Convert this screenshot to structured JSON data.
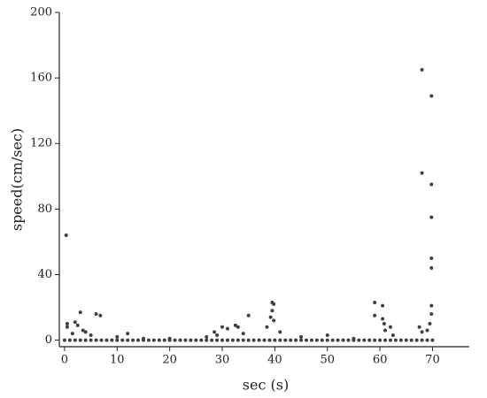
{
  "chart_data": {
    "type": "scatter",
    "x_label": "sec (s)",
    "y_label": "speed(cm/sec)",
    "color": "#404040",
    "xlim": [
      -1,
      77
    ],
    "ylim": [
      -4,
      200
    ],
    "xticks": [
      0,
      10,
      20,
      30,
      40,
      50,
      60,
      70
    ],
    "yticks": [
      0,
      40,
      80,
      120,
      160,
      200
    ],
    "x": [
      0,
      1,
      2,
      3,
      4,
      5,
      6,
      7,
      8,
      9,
      10,
      11,
      12,
      13,
      14,
      15,
      16,
      17,
      18,
      19,
      20,
      21,
      22,
      23,
      24,
      25,
      26,
      27,
      28,
      29,
      30,
      31,
      32,
      33,
      34,
      35,
      36,
      37,
      38,
      39,
      40,
      41,
      42,
      43,
      44,
      45,
      46,
      47,
      48,
      49,
      50,
      51,
      52,
      53,
      54,
      55,
      56,
      57,
      58,
      59,
      60,
      61,
      62,
      63,
      64,
      65,
      66,
      67,
      68,
      69,
      70,
      0.3,
      68,
      68,
      69.8,
      69.8,
      69.8,
      69.8,
      69.8,
      69.8,
      69.8,
      0.5,
      0.5,
      3,
      6,
      6.8,
      2,
      2.5,
      3.5,
      4,
      1.5,
      5,
      12,
      39.5,
      39.8,
      39.5,
      39.2,
      39.8,
      35,
      38.5,
      41,
      59,
      59,
      60.5,
      60.5,
      60.8,
      61,
      62,
      67.5,
      68,
      69.5,
      69,
      62.5,
      28.5,
      30,
      31,
      32.5,
      33,
      34,
      29,
      27,
      45,
      50,
      10,
      15,
      20,
      55
    ],
    "values": [
      0,
      0,
      0,
      0,
      0,
      0,
      0,
      0,
      0,
      0,
      0,
      0,
      0,
      0,
      0,
      0,
      0,
      0,
      0,
      0,
      0,
      0,
      0,
      0,
      0,
      0,
      0,
      0,
      0,
      0,
      0,
      0,
      0,
      0,
      0,
      0,
      0,
      0,
      0,
      0,
      0,
      0,
      0,
      0,
      0,
      0,
      0,
      0,
      0,
      0,
      0,
      0,
      0,
      0,
      0,
      0,
      0,
      0,
      0,
      0,
      0,
      0,
      0,
      0,
      0,
      0,
      0,
      0,
      0,
      0,
      0,
      64,
      165,
      102,
      149,
      95,
      75,
      50,
      44,
      21,
      16,
      10,
      8,
      17,
      16,
      15,
      11,
      9,
      6,
      5,
      4,
      3,
      4,
      23,
      22,
      18,
      14,
      12,
      15,
      8,
      5,
      23,
      15,
      21,
      13,
      10,
      6,
      8,
      8,
      5,
      10,
      6,
      3,
      5,
      8,
      7,
      9,
      8,
      4,
      3,
      2,
      2,
      3,
      2,
      1,
      1,
      1
    ]
  }
}
